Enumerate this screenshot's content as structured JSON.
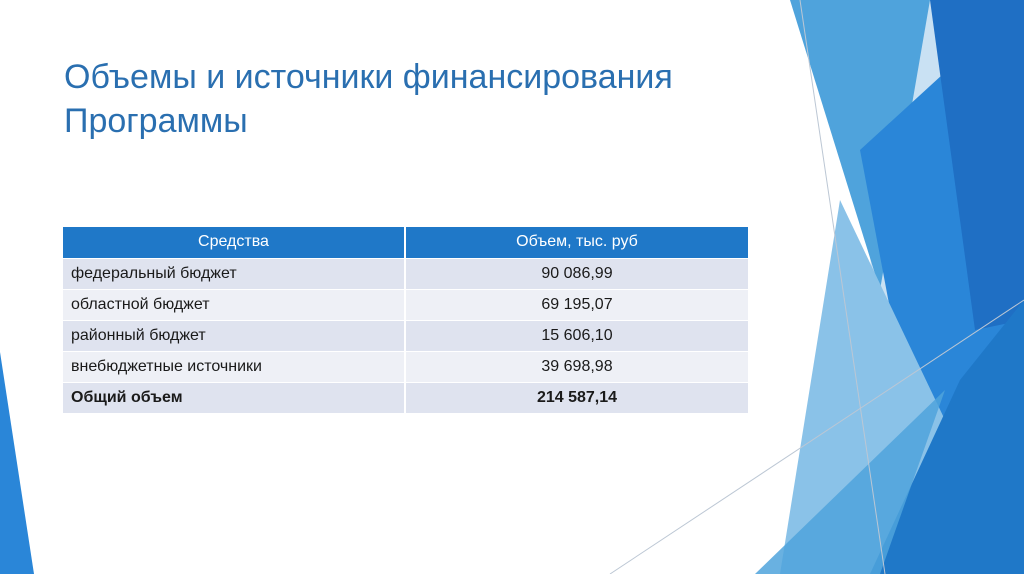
{
  "slide": {
    "title_line1": "Объемы и источники финансирования",
    "title_line2": "Программы"
  },
  "table": {
    "headers": [
      "Средства",
      "Объем, тыс. руб"
    ],
    "rows": [
      {
        "label": "федеральный бюджет",
        "value": "90 086,99"
      },
      {
        "label": "областной бюджет",
        "value": "69 195,07"
      },
      {
        "label": "районный бюджет",
        "value": "15 606,10"
      },
      {
        "label": "внебюджетные источники",
        "value": "39 698,98"
      }
    ],
    "total": {
      "label": "Общий объем",
      "value": "214 587,14"
    }
  },
  "theme": {
    "title_color": "#2a6fb0",
    "header_bg": "#1f78c8",
    "row_bg_a": "#dfe3ef",
    "row_bg_b": "#eef0f6",
    "decor_blues": [
      "#1f6fc4",
      "#2a86d8",
      "#4fa3dc",
      "#8ac2e8",
      "#c9e1f3"
    ]
  }
}
